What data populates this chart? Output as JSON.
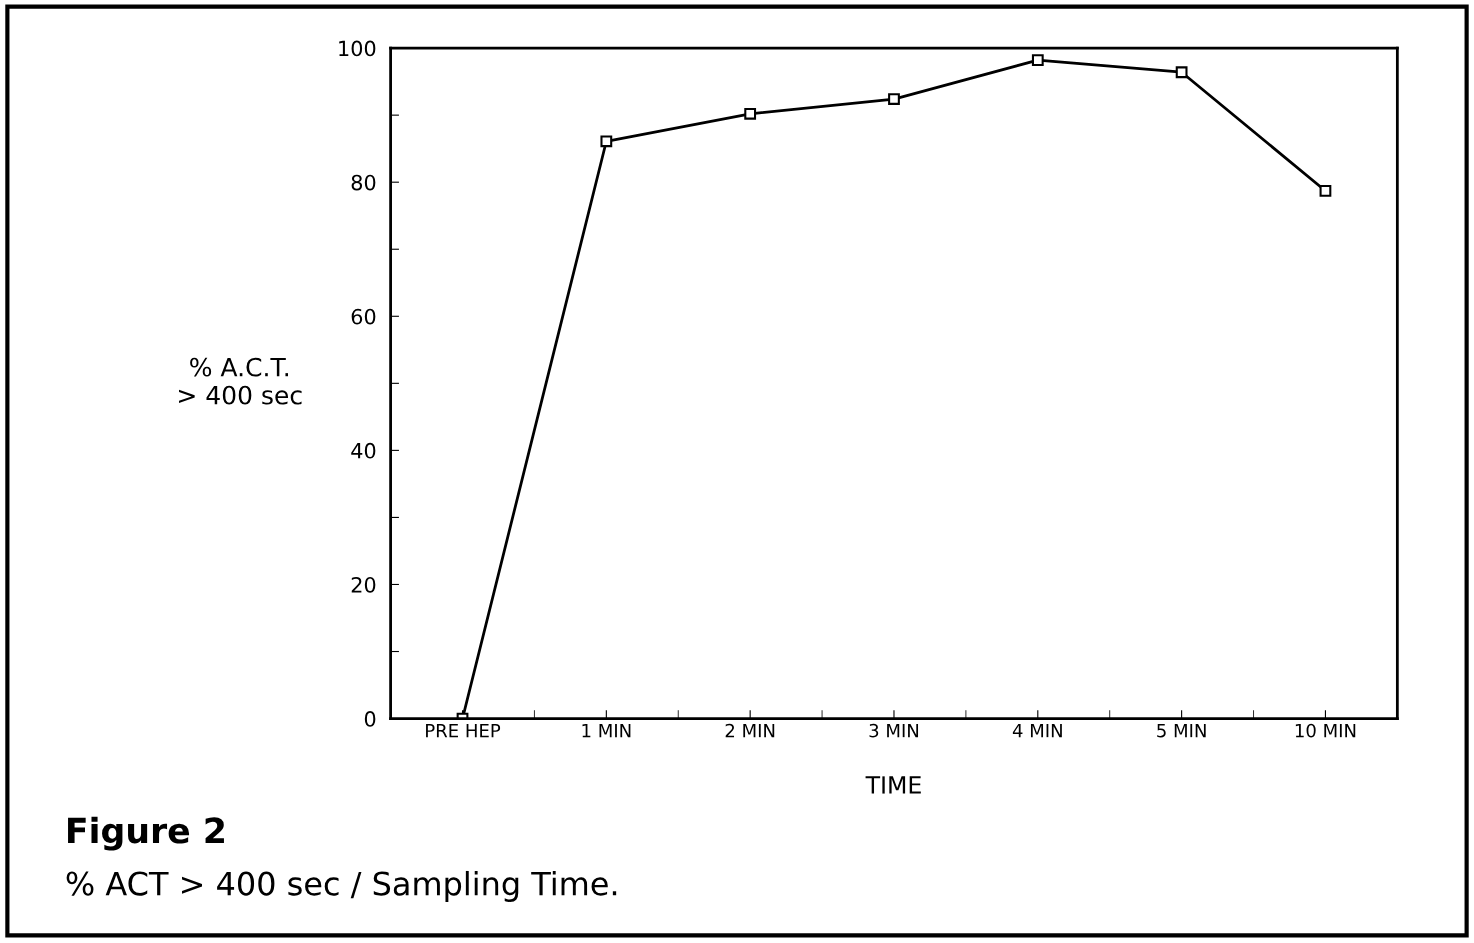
{
  "chart_data": {
    "type": "line",
    "title": "Figure 2",
    "subtitle": "% ACT > 400 sec / Sampling Time.",
    "xlabel": "TIME",
    "ylabel": "% A.C.T.\n> 400 sec",
    "categories": [
      "PRE HEP",
      "1 MIN",
      "2 MIN",
      "3 MIN",
      "4 MIN",
      "5 MIN",
      "10 MIN"
    ],
    "series": [
      {
        "color": "#000000",
        "values": [
          0,
          86.1,
          90.2,
          92.4,
          98.2,
          96.4,
          78.7
        ]
      }
    ],
    "ylim": [
      0,
      100
    ],
    "yticks": [
      0,
      {
        "value": 10,
        "label": null
      },
      20,
      {
        "value": 30,
        "label": null
      },
      40,
      {
        "value": 50,
        "label": null
      },
      60,
      {
        "value": 70,
        "label": null
      },
      80,
      {
        "value": 90,
        "label": null
      },
      100
    ],
    "grid": false,
    "legend": false,
    "marker": "square",
    "line_style": "solid"
  }
}
